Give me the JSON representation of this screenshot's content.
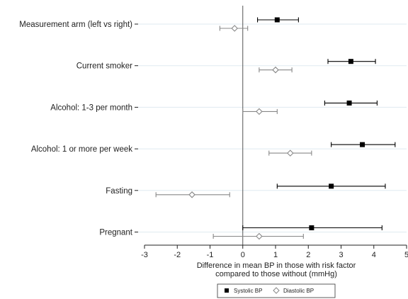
{
  "chart_data": {
    "type": "forest",
    "title": "",
    "xlabel_line1": "Difference in mean BP in those with risk factor",
    "xlabel_line2": "compared to those without (mmHg)",
    "xlim": [
      -3,
      5
    ],
    "xticks": [
      "-3",
      "-2",
      "-1",
      "0",
      "1",
      "2",
      "3",
      "4",
      "5"
    ],
    "categories": [
      "Measurement arm (left vs right)",
      "Current smoker",
      "Alcohol: 1-3 per month",
      "Alcohol: 1 or more per week",
      "Fasting",
      "Pregnant"
    ],
    "series": [
      {
        "name": "Systolic BP",
        "marker": "filled-square",
        "color": "#000000",
        "estimates": [
          1.05,
          3.3,
          3.25,
          3.65,
          2.7,
          2.1
        ],
        "lower": [
          0.45,
          2.6,
          2.5,
          2.7,
          1.05,
          0.0
        ],
        "upper": [
          1.7,
          4.05,
          4.1,
          4.65,
          4.35,
          4.25
        ]
      },
      {
        "name": "Diastolic BP",
        "marker": "hollow-diamond",
        "color": "#888888",
        "estimates": [
          -0.25,
          1.0,
          0.5,
          1.45,
          -1.55,
          0.5
        ],
        "lower": [
          -0.7,
          0.5,
          0.0,
          0.8,
          -2.65,
          -0.9
        ],
        "upper": [
          0.15,
          1.5,
          1.05,
          2.1,
          -0.4,
          1.85
        ]
      }
    ],
    "legend": "bottom-center",
    "grid": "horizontal"
  }
}
